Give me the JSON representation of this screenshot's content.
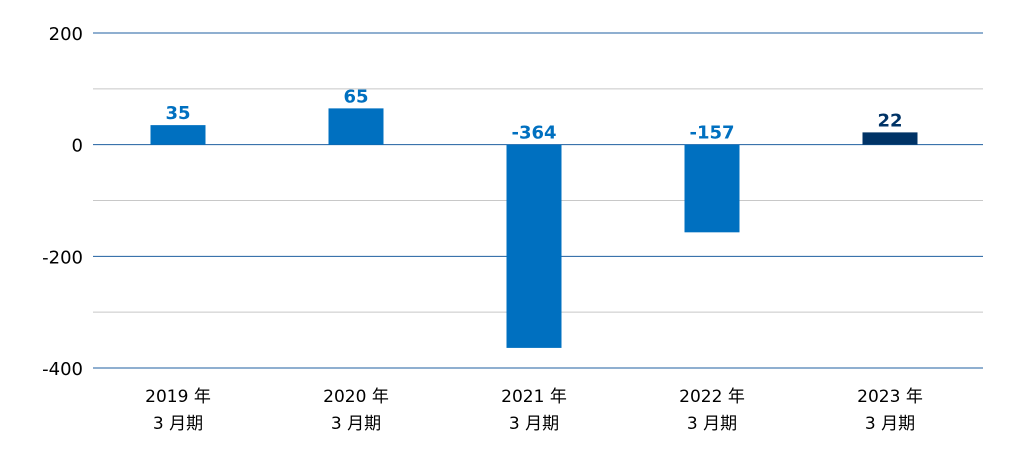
{
  "chart_data": {
    "type": "bar",
    "categories": [
      [
        "2019 年",
        "3 月期"
      ],
      [
        "2020 年",
        "3 月期"
      ],
      [
        "2021 年",
        "3 月期"
      ],
      [
        "2022 年",
        "3 月期"
      ],
      [
        "2023 年",
        "3 月期"
      ]
    ],
    "values": [
      35,
      65,
      -364,
      -157,
      22
    ],
    "data_labels": [
      "35",
      "65",
      "-364",
      "-157",
      "22"
    ],
    "ylim": [
      -400,
      200
    ],
    "yticks": [
      200,
      0,
      -200,
      -400
    ],
    "grid": true,
    "title": "",
    "xlabel": "",
    "ylabel": "",
    "colors": {
      "bar": "#0070C0",
      "highlight_bar": "#003366",
      "label": "#0070C0",
      "highlight_label": "#003366",
      "major_grid": "#1F5FA0",
      "minor_grid": "#C8C8C8"
    },
    "highlight_index": 4
  }
}
